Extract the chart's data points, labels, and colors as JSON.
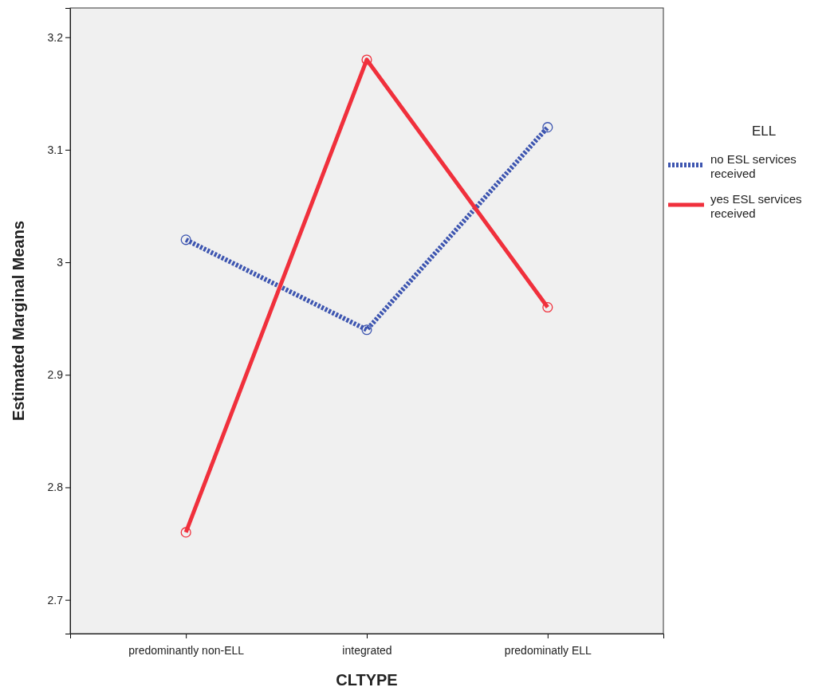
{
  "chart_data": {
    "type": "line",
    "xlabel": "CLTYPE",
    "ylabel": "Estimated Marginal Means",
    "legend_title": "ELL",
    "categories": [
      "predominantly non-ELL",
      "integrated",
      "predominatly ELL"
    ],
    "series": [
      {
        "name": "no ESL services received",
        "color": "#3d55b0",
        "values": [
          3.02,
          2.94,
          3.12
        ],
        "line_style": "dotted"
      },
      {
        "name": "yes ESL services received",
        "color": "#f0303c",
        "values": [
          2.76,
          3.18,
          2.96
        ],
        "line_style": "solid"
      }
    ],
    "ylim": [
      2.67,
      3.226
    ],
    "yticks": [
      2.7,
      2.8,
      2.9,
      3,
      3.1,
      3.2
    ],
    "legend": "right",
    "marker": "circle",
    "grid": false
  }
}
